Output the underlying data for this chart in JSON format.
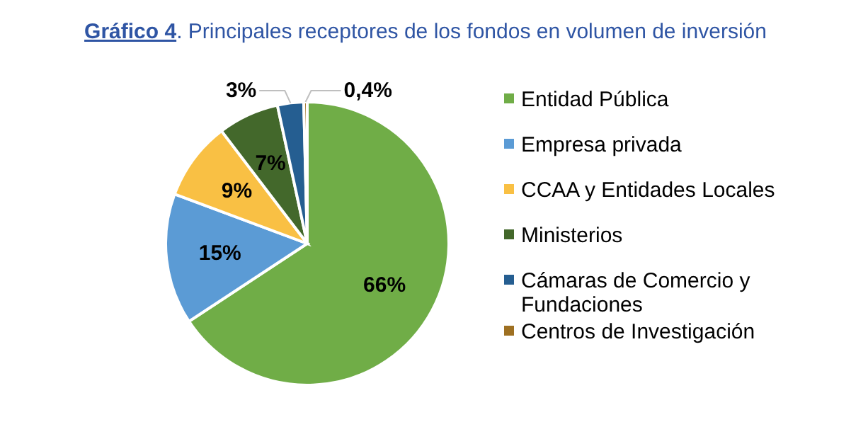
{
  "chart_data": {
    "type": "pie",
    "title": "Gráfico 4. Principales receptores de los fondos en volumen de inversión",
    "categories": [
      "Entidad Pública",
      "Empresa privada",
      "CCAA y Entidades Locales",
      "Ministerios",
      "Cámaras de Comercio y Fundaciones",
      "Centros de Investigación"
    ],
    "values": [
      66,
      15,
      9,
      7,
      3,
      0.4
    ],
    "colors": [
      "#70ad47",
      "#5b9bd5",
      "#f9c044",
      "#43682b",
      "#255e91",
      "#9e7022"
    ],
    "value_labels": [
      "66%",
      "15%",
      "9%",
      "7%",
      "3%",
      "0,4%"
    ],
    "legend": "right"
  }
}
